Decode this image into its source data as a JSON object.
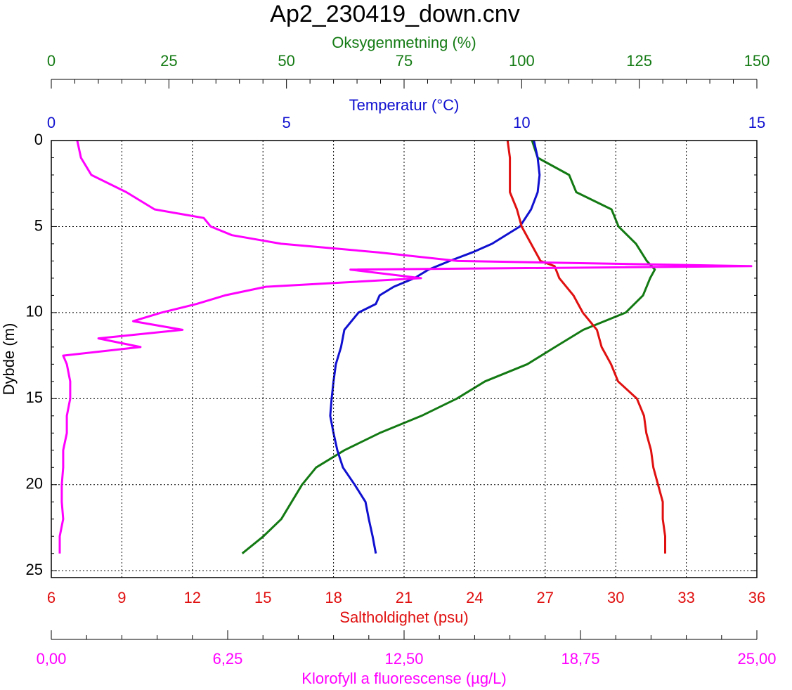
{
  "chart_data": {
    "type": "profile",
    "title": "Ap2_230419_down.cnv",
    "ylabel": "Dybde (m)",
    "ylim": [
      0,
      25.4
    ],
    "yticks": [
      0,
      5,
      10,
      15,
      20,
      25
    ],
    "axes": [
      {
        "label": "Oksygenmetning (%)",
        "color": "#137a13",
        "lim": [
          0,
          150
        ],
        "ticks": [
          0,
          25,
          50,
          75,
          100,
          125,
          150
        ],
        "depth": [
          0,
          1,
          2,
          3,
          4,
          5,
          6,
          7,
          7.5,
          8,
          9,
          10,
          11,
          12,
          13,
          14,
          15,
          16,
          17,
          18,
          19,
          20,
          21,
          22,
          23,
          24
        ],
        "values": [
          102.2,
          103.4,
          110.1,
          111.6,
          119.1,
          120.6,
          124.3,
          126.6,
          128.3,
          127.3,
          125.8,
          122.1,
          113.1,
          107.1,
          101.2,
          92.2,
          86.2,
          78.7,
          69.8,
          62.3,
          56.3,
          53.3,
          51.1,
          48.9,
          45.1,
          40.6
        ]
      },
      {
        "label": "Temperatur (°C)",
        "color": "#1010d0",
        "lim": [
          0,
          15
        ],
        "ticks": [
          0,
          5,
          10,
          15
        ],
        "depth": [
          0,
          1,
          2,
          3,
          4,
          5,
          6,
          6.5,
          7,
          7.5,
          8,
          8.5,
          9,
          9.5,
          10,
          11,
          12,
          13,
          14,
          15,
          16,
          17,
          18,
          19,
          20,
          21,
          22,
          23,
          24
        ],
        "values": [
          10.26,
          10.34,
          10.38,
          10.34,
          10.2,
          9.96,
          9.37,
          8.95,
          8.47,
          8.02,
          7.72,
          7.28,
          6.98,
          6.9,
          6.53,
          6.23,
          6.16,
          6.05,
          6.0,
          5.96,
          5.93,
          6.0,
          6.08,
          6.2,
          6.45,
          6.68,
          6.75,
          6.83,
          6.9
        ]
      },
      {
        "label": "Saltholdighet (psu)",
        "color": "#e01010",
        "lim": [
          6,
          36
        ],
        "ticks": [
          6,
          9,
          12,
          15,
          18,
          21,
          24,
          27,
          30,
          33,
          36
        ],
        "grid": true,
        "depth": [
          0,
          1,
          2,
          3,
          4,
          5,
          6,
          7,
          7.3,
          8,
          9,
          10,
          11,
          12,
          13,
          14,
          15,
          16,
          17,
          18,
          19,
          20,
          21,
          22,
          23,
          24
        ],
        "values": [
          25.4,
          25.5,
          25.5,
          25.5,
          25.8,
          26.0,
          26.4,
          26.8,
          27.4,
          27.6,
          28.2,
          28.6,
          29.2,
          29.4,
          29.8,
          30.1,
          30.9,
          31.2,
          31.3,
          31.5,
          31.6,
          31.8,
          32.0,
          32.0,
          32.1,
          32.1
        ]
      },
      {
        "label": "Klorofyll a fluorescense (µg/L)",
        "color": "#ff00ff",
        "lim": [
          0,
          25
        ],
        "ticks": [
          {
            "value": 0,
            "label": "0,00"
          },
          {
            "value": 6.25,
            "label": "6,25"
          },
          {
            "value": 12.5,
            "label": "12,50"
          },
          {
            "value": 18.75,
            "label": "18,75"
          },
          {
            "value": 25,
            "label": "25,00"
          }
        ],
        "depth": [
          0,
          1,
          2,
          3,
          4,
          4.5,
          5,
          5.5,
          6,
          6.5,
          7,
          7.3,
          7.5,
          8,
          8.5,
          9,
          9.5,
          10,
          10.5,
          11,
          11.5,
          12,
          12.5,
          13,
          14,
          15,
          16,
          17,
          18,
          19,
          20,
          21,
          22,
          23,
          24
        ],
        "values": [
          0.92,
          1.05,
          1.42,
          2.66,
          3.66,
          5.4,
          5.65,
          6.4,
          8.14,
          11.6,
          14.4,
          24.8,
          10.6,
          13.1,
          7.6,
          6.15,
          5.15,
          3.9,
          2.9,
          4.65,
          1.67,
          3.16,
          0.42,
          0.55,
          0.67,
          0.67,
          0.55,
          0.55,
          0.42,
          0.42,
          0.37,
          0.37,
          0.42,
          0.3,
          0.3
        ]
      }
    ]
  }
}
